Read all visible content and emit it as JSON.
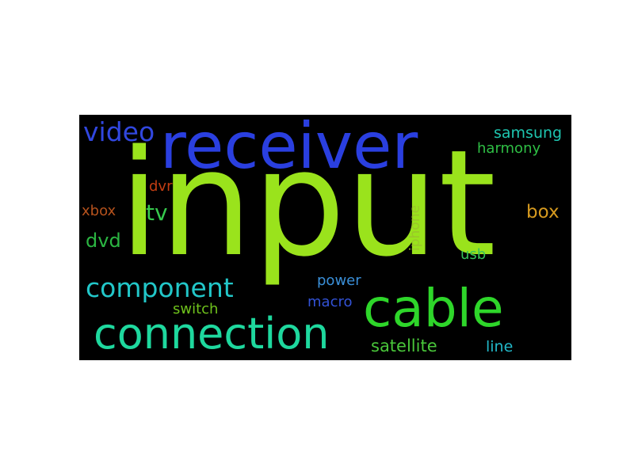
{
  "word_cloud": {
    "background_color": "#000000",
    "words": [
      {
        "id": "input",
        "text": "input",
        "color": "#9ae31c"
      },
      {
        "id": "receiver",
        "text": "receiver",
        "color": "#2a3fe0"
      },
      {
        "id": "cable",
        "text": "cable",
        "color": "#2ed62a"
      },
      {
        "id": "connection",
        "text": "connection",
        "color": "#1ed89e"
      },
      {
        "id": "component",
        "text": "component",
        "color": "#22c7c9"
      },
      {
        "id": "video",
        "text": "video",
        "color": "#3147df"
      },
      {
        "id": "tv",
        "text": "tv",
        "color": "#36c94d"
      },
      {
        "id": "dvd",
        "text": "dvd",
        "color": "#2bb542"
      },
      {
        "id": "xbox",
        "text": "xbox",
        "color": "#b5521d"
      },
      {
        "id": "dvr",
        "text": "dvr",
        "color": "#c23d12"
      },
      {
        "id": "samsung",
        "text": "samsung",
        "color": "#1ec6b0"
      },
      {
        "id": "harmony",
        "text": "harmony",
        "color": "#2fbf45"
      },
      {
        "id": "box",
        "text": "box",
        "color": "#d69a1f"
      },
      {
        "id": "iphone",
        "text": "iphone",
        "color": "#9ac72a"
      },
      {
        "id": "usb",
        "text": "usb",
        "color": "#36c25a"
      },
      {
        "id": "power",
        "text": "power",
        "color": "#3a8fd8"
      },
      {
        "id": "macro",
        "text": "macro",
        "color": "#3252d6"
      },
      {
        "id": "switch",
        "text": "switch",
        "color": "#6fc21c"
      },
      {
        "id": "satellite",
        "text": "satellite",
        "color": "#49c63a"
      },
      {
        "id": "line",
        "text": "line",
        "color": "#22b8c9"
      }
    ]
  }
}
